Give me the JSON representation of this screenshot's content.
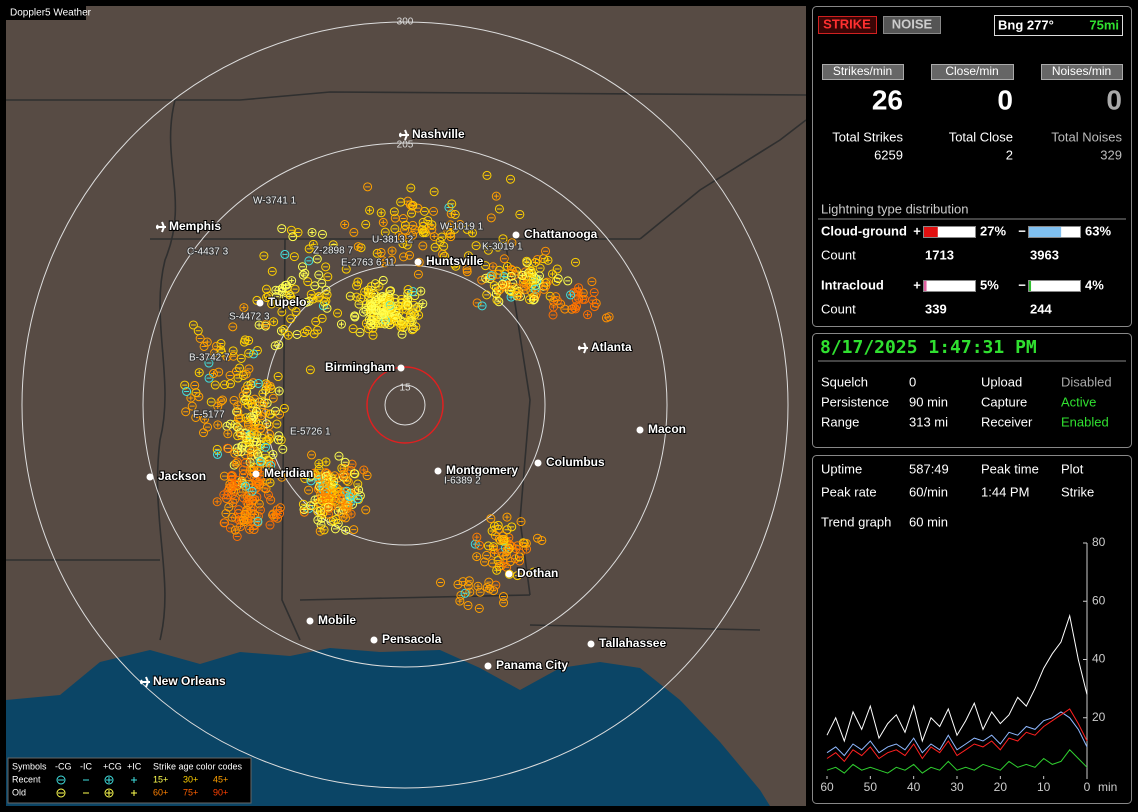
{
  "window_title": "Doppler5 Weather",
  "map": {
    "range_labels": [
      300,
      205,
      15
    ],
    "cities": [
      "Nashville",
      "Memphis",
      "Chattanooga",
      "Huntsville",
      "Tupelo",
      "Atlanta",
      "Birmingham",
      "Macon",
      "Jackson",
      "Meridian",
      "Montgomery",
      "Columbus",
      "Dothan",
      "Mobile",
      "Pensacola",
      "Tallahassee",
      "Panama City",
      "New Orleans"
    ],
    "cells": [
      "W-3741 1",
      "W-1019 1",
      "C-4437 3",
      "Z-2898 7",
      "U-3813 2",
      "K-3019 1",
      "E-2763 6 11",
      "S-4472 3",
      "B-3742 7",
      "F-5177",
      "E-5726 1",
      "I-6389 2"
    ],
    "legend": {
      "header": [
        "Symbols",
        "-CG",
        "-IC",
        "+CG",
        "+IC",
        "Strike age color codes"
      ],
      "rows": [
        "Recent",
        "Old"
      ],
      "ages": [
        [
          "15+",
          "30+",
          "45+"
        ],
        [
          "60+",
          "75+",
          "90+"
        ]
      ]
    }
  },
  "status": {
    "strike": "STRIKE",
    "noise": "NOISE",
    "bearing": "Bng 277°",
    "distance": "75mi"
  },
  "rates": [
    {
      "label": "Strikes/min",
      "value": 26,
      "total_label": "Total Strikes",
      "total": 6259
    },
    {
      "label": "Close/min",
      "value": 0,
      "total_label": "Total Close",
      "total": 2
    },
    {
      "label": "Noises/min",
      "value": 0,
      "total_label": "Total Noises",
      "total": 329
    }
  ],
  "distribution": {
    "title": "Lightning type distribution",
    "signs": [
      "+",
      "−"
    ],
    "count_label": "Count",
    "rows": [
      {
        "label": "Cloud-ground",
        "pos": {
          "value": 27,
          "label": "27%"
        },
        "neg": {
          "value": 63,
          "label": "63%"
        },
        "counts": [
          1713,
          3963
        ]
      },
      {
        "label": "Intracloud",
        "pos": {
          "value": 5,
          "label": "5%"
        },
        "neg": {
          "value": 4,
          "label": "4%"
        },
        "counts": [
          339,
          244
        ]
      }
    ]
  },
  "clock": "8/17/2025 1:47:31 PM",
  "settings": [
    [
      "Squelch",
      "0",
      "Upload",
      "Disabled"
    ],
    [
      "Persistence",
      "90 min",
      "Capture",
      "Active"
    ],
    [
      "Range",
      "313 mi",
      "Receiver",
      "Enabled"
    ]
  ],
  "stats": [
    [
      "Uptime",
      "587:49",
      "Peak time",
      "Plot"
    ],
    [
      "Peak rate",
      "60/min",
      "1:44 PM",
      "Strike"
    ],
    [
      "Trend graph",
      "60 min"
    ]
  ],
  "trend": {
    "ylim": [
      0,
      80
    ],
    "yticks": [
      20,
      40,
      60,
      80
    ],
    "xlim": [
      60,
      0
    ],
    "xticks": [
      60,
      50,
      40,
      30,
      20,
      10,
      0
    ],
    "x_unit": "min",
    "x": [
      60,
      58,
      56,
      54,
      52,
      50,
      48,
      46,
      44,
      42,
      40,
      38,
      36,
      34,
      32,
      30,
      28,
      26,
      24,
      22,
      20,
      18,
      16,
      14,
      12,
      10,
      8,
      6,
      4,
      2,
      0
    ],
    "series": [
      {
        "color": "#ffffff",
        "values": [
          14,
          20,
          12,
          22,
          16,
          24,
          13,
          18,
          21,
          15,
          24,
          12,
          20,
          17,
          23,
          14,
          19,
          25,
          16,
          22,
          18,
          21,
          27,
          24,
          30,
          37,
          42,
          46,
          55,
          40,
          28
        ]
      },
      {
        "color": "#8fb8ff",
        "values": [
          8,
          10,
          7,
          11,
          9,
          12,
          8,
          10,
          11,
          9,
          13,
          8,
          11,
          9,
          14,
          9,
          11,
          13,
          12,
          14,
          11,
          15,
          14,
          17,
          16,
          19,
          20,
          22,
          20,
          16,
          10
        ]
      },
      {
        "color": "#ff2020",
        "values": [
          6,
          8,
          5,
          9,
          7,
          10,
          6,
          8,
          9,
          7,
          11,
          6,
          10,
          8,
          12,
          7,
          9,
          11,
          10,
          12,
          9,
          13,
          12,
          15,
          14,
          17,
          19,
          21,
          23,
          18,
          12
        ]
      },
      {
        "color": "#30d030",
        "values": [
          2,
          3,
          1,
          4,
          2,
          3,
          2,
          1,
          3,
          2,
          4,
          1,
          3,
          2,
          5,
          2,
          3,
          2,
          4,
          3,
          2,
          5,
          3,
          4,
          3,
          6,
          4,
          5,
          9,
          6,
          3
        ]
      }
    ]
  }
}
